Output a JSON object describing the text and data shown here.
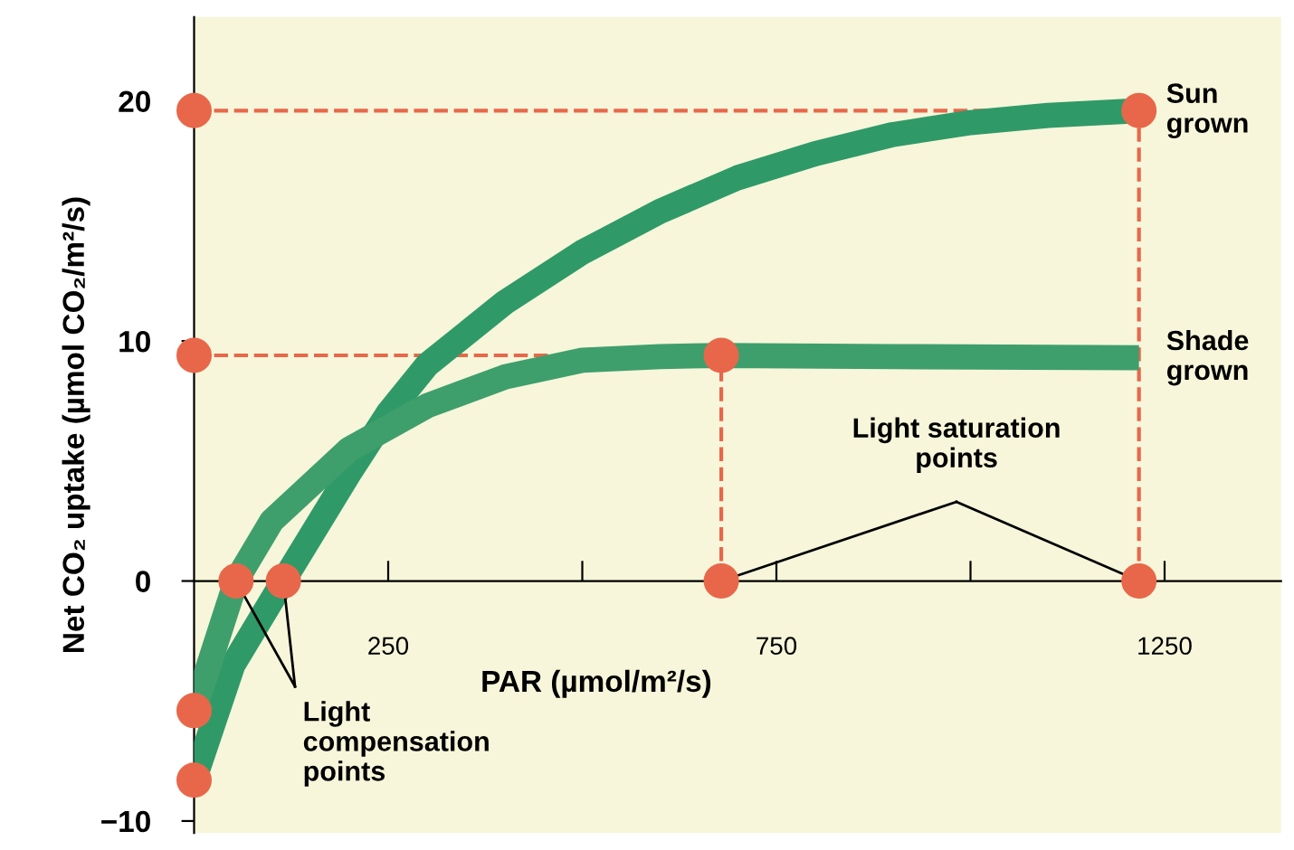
{
  "chart_data": {
    "type": "line",
    "xlabel": "PAR (µmol/m²/s)",
    "ylabel": "Net CO₂ uptake (µmol CO₂/m²/s)",
    "xlim": [
      0,
      1400
    ],
    "ylim": [
      -10.5,
      23.5
    ],
    "xticks": [
      {
        "value": 250,
        "label": "250"
      },
      {
        "value": 500,
        "label": null
      },
      {
        "value": 750,
        "label": "750"
      },
      {
        "value": 1000,
        "label": null
      },
      {
        "value": 1250,
        "label": "1250"
      }
    ],
    "yticks": [
      {
        "value": -10,
        "label": "−10"
      },
      0,
      10,
      20
    ],
    "grid": false,
    "series": [
      {
        "name": "Sun grown",
        "color": "#2f9a68",
        "x": [
          0,
          50,
          115,
          200,
          250,
          300,
          400,
          500,
          600,
          700,
          800,
          900,
          1000,
          1100,
          1217
        ],
        "values": [
          -8.3,
          -3.5,
          0,
          4.5,
          7,
          9,
          11.6,
          13.7,
          15.4,
          16.8,
          17.8,
          18.6,
          19.1,
          19.4,
          19.6
        ]
      },
      {
        "name": "Shade grown",
        "color": "#3f9f6c",
        "x": [
          0,
          54,
          100,
          200,
          300,
          400,
          500,
          600,
          679,
          900,
          1217
        ],
        "values": [
          -5.4,
          0,
          2.5,
          5.5,
          7.3,
          8.5,
          9.2,
          9.35,
          9.4,
          9.35,
          9.3
        ]
      },
      {
        "type": "line",
        "line_style": "dashed",
        "color": "#e8674a",
        "x": [
          0,
          1217
        ],
        "values": [
          19.6,
          19.6
        ]
      },
      {
        "type": "line",
        "line_style": "dashed",
        "color": "#e8674a",
        "x": [
          0,
          679
        ],
        "values": [
          9.4,
          9.4
        ]
      },
      {
        "type": "line",
        "line_style": "dashed",
        "color": "#e8674a",
        "x": [
          679,
          679
        ],
        "values": [
          0,
          9.4
        ]
      },
      {
        "type": "line",
        "line_style": "dashed",
        "color": "#e8674a",
        "x": [
          1217,
          1217
        ],
        "values": [
          0,
          19.6
        ]
      },
      {
        "type": "scatter",
        "marker": "circle",
        "color": "#e8674a",
        "x": [
          0,
          0,
          0,
          0,
          54,
          115,
          679,
          1217,
          679,
          1217
        ],
        "values": [
          19.6,
          9.4,
          -5.4,
          -8.3,
          0,
          0,
          0,
          0,
          9.4,
          19.6
        ]
      }
    ],
    "annotations": [
      {
        "text": "Light compensation points",
        "x": 54,
        "y": 0
      },
      {
        "text": "Light saturation points",
        "x": 679,
        "y": 0
      }
    ]
  }
}
